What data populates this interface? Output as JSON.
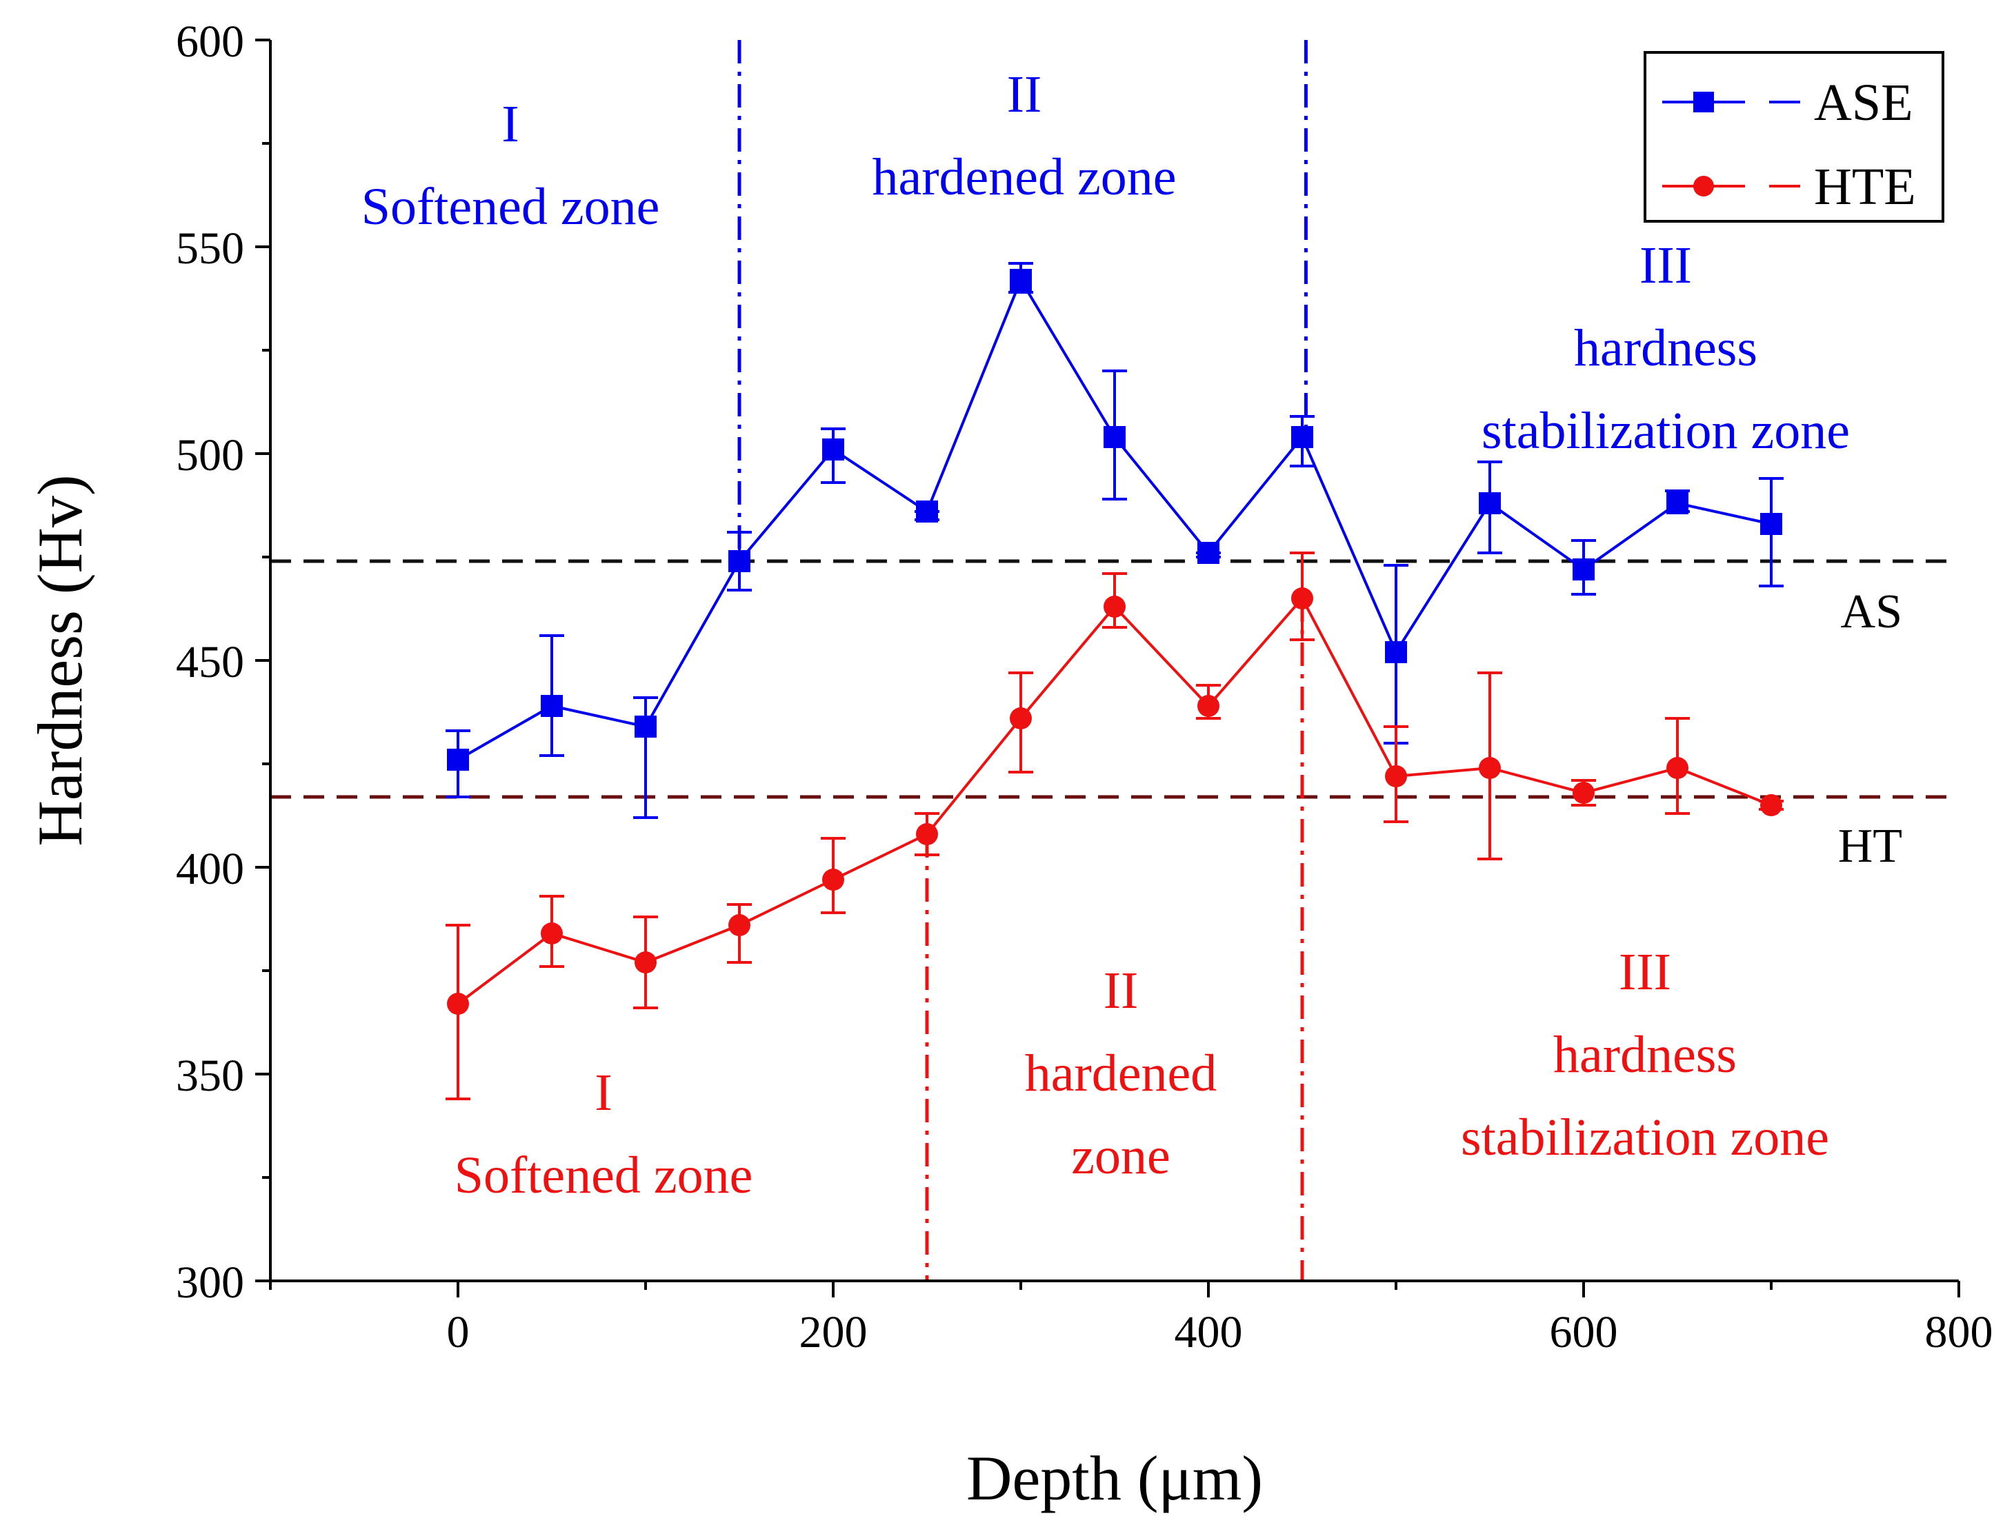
{
  "chart_data": {
    "type": "line",
    "xlabel": "Depth (μm)",
    "ylabel": "Hardness (Hv)",
    "xlim": [
      -100,
      800
    ],
    "ylim": [
      300,
      600
    ],
    "x_ticks": [
      0,
      200,
      400,
      600,
      800
    ],
    "y_ticks": [
      300,
      350,
      400,
      450,
      500,
      550,
      600
    ],
    "x_tick_labels": [
      "0",
      "200",
      "400",
      "600",
      "800"
    ],
    "y_tick_labels": [
      "300",
      "350",
      "400",
      "450",
      "500",
      "550",
      "600"
    ],
    "grid": false,
    "legend_position": "top-right",
    "series": [
      {
        "name": "ASE",
        "color": "#0000ee",
        "marker": "square",
        "x": [
          0,
          50,
          100,
          150,
          200,
          250,
          300,
          350,
          400,
          450,
          500,
          550,
          600,
          650,
          700
        ],
        "y": [
          426,
          439,
          434,
          474,
          501,
          486,
          542,
          504,
          476,
          504,
          452,
          488,
          472,
          488,
          483
        ],
        "err_upper": [
          433,
          456,
          441,
          481,
          506,
          486,
          546,
          520,
          476,
          509,
          473,
          498,
          479,
          491,
          494
        ],
        "err_lower": [
          417,
          427,
          412,
          467,
          493,
          484,
          539,
          489,
          475,
          497,
          430,
          476,
          466,
          486,
          468
        ]
      },
      {
        "name": "HTE",
        "color": "#ee1111",
        "marker": "circle",
        "x": [
          0,
          50,
          100,
          150,
          200,
          250,
          300,
          350,
          400,
          450,
          500,
          550,
          600,
          650,
          700
        ],
        "y": [
          367,
          384,
          377,
          386,
          397,
          408,
          436,
          463,
          439,
          465,
          422,
          424,
          418,
          424,
          415
        ],
        "err_upper": [
          386,
          393,
          388,
          391,
          407,
          413,
          447,
          471,
          444,
          476,
          434,
          447,
          421,
          436,
          416
        ],
        "err_lower": [
          344,
          376,
          366,
          377,
          389,
          403,
          423,
          458,
          436,
          455,
          411,
          402,
          415,
          413,
          414
        ]
      }
    ],
    "reference_lines": [
      {
        "label": "AS",
        "y": 474,
        "color": "#111111"
      },
      {
        "label": "HT",
        "y": 417,
        "color": "#6b1010"
      }
    ],
    "zone_boundaries": [
      {
        "series": "ASE",
        "x": 150,
        "color": "#0000ee"
      },
      {
        "series": "ASE",
        "x": 452,
        "color": "#0000ee"
      },
      {
        "series": "HTE",
        "x": 250,
        "color": "#ee1111"
      },
      {
        "series": "HTE",
        "x": 450,
        "color": "#ee1111"
      }
    ],
    "annotations": [
      {
        "series": "ASE",
        "color": "#0000ee",
        "lines": [
          "I",
          "Softened zone"
        ]
      },
      {
        "series": "ASE",
        "color": "#0000ee",
        "lines": [
          "II",
          "hardened zone"
        ]
      },
      {
        "series": "ASE",
        "color": "#0000ee",
        "lines": [
          "III",
          "hardness",
          "stabilization zone"
        ]
      },
      {
        "series": "HTE",
        "color": "#ee1111",
        "lines": [
          "I",
          "Softened zone"
        ]
      },
      {
        "series": "HTE",
        "color": "#ee1111",
        "lines": [
          "II",
          "hardened",
          "zone"
        ]
      },
      {
        "series": "HTE",
        "color": "#ee1111",
        "lines": [
          "III",
          "hardness",
          "stabilization zone"
        ]
      }
    ]
  }
}
